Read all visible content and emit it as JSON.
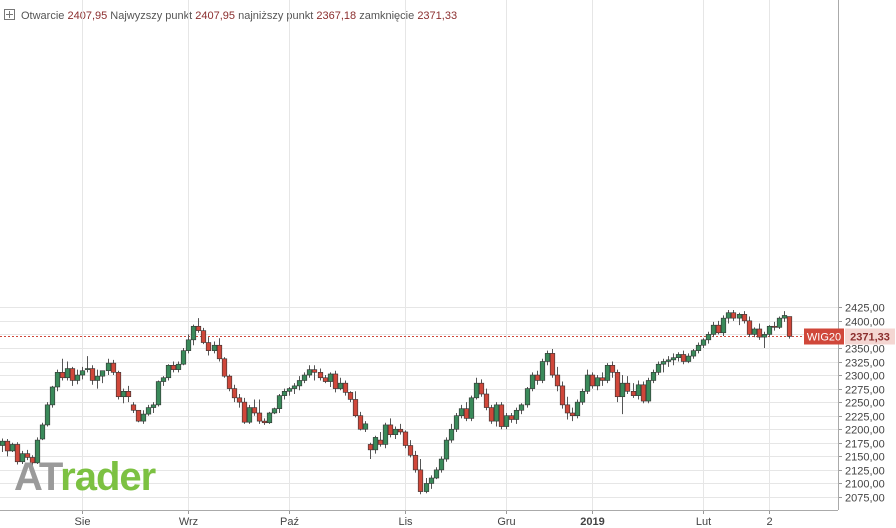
{
  "header": {
    "open_label": "Otwarcie",
    "open_value": "2407,95",
    "high_label": "Najwyzszy punkt",
    "high_value": "2407,95",
    "low_label": "najniższy punkt",
    "low_value": "2367,18",
    "close_label": "zamknięcie",
    "close_value": "2371,33"
  },
  "logo": {
    "part1": "AT",
    "part2": "rader"
  },
  "colors": {
    "up": "#3a8a5a",
    "down": "#d0473a",
    "grid": "#e6e6e6",
    "tag": "#d0473a",
    "tag_value_bg": "#f4d6d2"
  },
  "chart_data": {
    "type": "candlestick",
    "instrument": "WIG20",
    "last_value": 2371.33,
    "last_label": "2371,33",
    "ylim": [
      2065,
      2432
    ],
    "y_ticks": [
      2075,
      2100,
      2125,
      2150,
      2175,
      2200,
      2225,
      2250,
      2275,
      2300,
      2325,
      2350,
      2375,
      2400,
      2425
    ],
    "y_tick_labels": [
      "2075,00",
      "2100,00",
      "2125,00",
      "2150,00",
      "2175,00",
      "2200,00",
      "2225,00",
      "2250,00",
      "2275,00",
      "2300,00",
      "2325,00",
      "2350,00",
      "2375,00",
      "2400,00",
      "2425,00"
    ],
    "x_ticks": [
      {
        "label": "Sie",
        "index": 16,
        "bold": false
      },
      {
        "label": "Wrz",
        "index": 37,
        "bold": false
      },
      {
        "label": "Paź",
        "index": 57,
        "bold": false
      },
      {
        "label": "Lis",
        "index": 80,
        "bold": false
      },
      {
        "label": "Gru",
        "index": 100,
        "bold": false
      },
      {
        "label": "2019",
        "index": 117,
        "bold": true
      },
      {
        "label": "Lut",
        "index": 139,
        "bold": false
      },
      {
        "label": "2",
        "index": 152,
        "bold": false
      }
    ],
    "candles": [
      [
        2170,
        2183,
        2158,
        2178
      ],
      [
        2178,
        2182,
        2150,
        2160
      ],
      [
        2160,
        2175,
        2158,
        2172
      ],
      [
        2172,
        2176,
        2135,
        2140
      ],
      [
        2140,
        2160,
        2136,
        2155
      ],
      [
        2155,
        2162,
        2143,
        2148
      ],
      [
        2148,
        2152,
        2130,
        2138
      ],
      [
        2138,
        2185,
        2136,
        2180
      ],
      [
        2182,
        2212,
        2180,
        2208
      ],
      [
        2208,
        2250,
        2205,
        2245
      ],
      [
        2245,
        2280,
        2240,
        2278
      ],
      [
        2278,
        2310,
        2270,
        2305
      ],
      [
        2305,
        2330,
        2290,
        2295
      ],
      [
        2295,
        2325,
        2290,
        2312
      ],
      [
        2312,
        2315,
        2280,
        2290
      ],
      [
        2290,
        2310,
        2283,
        2300
      ],
      [
        2300,
        2315,
        2292,
        2308
      ],
      [
        2310,
        2335,
        2305,
        2312
      ],
      [
        2312,
        2318,
        2282,
        2290
      ],
      [
        2290,
        2310,
        2275,
        2298
      ],
      [
        2298,
        2305,
        2285,
        2308
      ],
      [
        2308,
        2330,
        2300,
        2322
      ],
      [
        2322,
        2328,
        2300,
        2305
      ],
      [
        2305,
        2308,
        2255,
        2260
      ],
      [
        2260,
        2275,
        2248,
        2270
      ],
      [
        2270,
        2280,
        2250,
        2260
      ],
      [
        2245,
        2250,
        2230,
        2235
      ],
      [
        2235,
        2235,
        2213,
        2215
      ],
      [
        2215,
        2235,
        2210,
        2228
      ],
      [
        2228,
        2245,
        2225,
        2240
      ],
      [
        2240,
        2250,
        2230,
        2245
      ],
      [
        2245,
        2290,
        2242,
        2288
      ],
      [
        2288,
        2298,
        2280,
        2295
      ],
      [
        2295,
        2320,
        2290,
        2318
      ],
      [
        2318,
        2325,
        2305,
        2310
      ],
      [
        2310,
        2325,
        2305,
        2320
      ],
      [
        2320,
        2350,
        2318,
        2345
      ],
      [
        2345,
        2375,
        2340,
        2365
      ],
      [
        2365,
        2393,
        2355,
        2390
      ],
      [
        2390,
        2405,
        2378,
        2382
      ],
      [
        2382,
        2387,
        2357,
        2360
      ],
      [
        2360,
        2370,
        2336,
        2345
      ],
      [
        2345,
        2362,
        2340,
        2355
      ],
      [
        2355,
        2368,
        2325,
        2330
      ],
      [
        2330,
        2333,
        2295,
        2298
      ],
      [
        2298,
        2301,
        2270,
        2275
      ],
      [
        2275,
        2282,
        2250,
        2258
      ],
      [
        2258,
        2265,
        2240,
        2250
      ],
      [
        2250,
        2258,
        2210,
        2213
      ],
      [
        2213,
        2245,
        2210,
        2240
      ],
      [
        2240,
        2255,
        2225,
        2230
      ],
      [
        2230,
        2255,
        2210,
        2215
      ],
      [
        2215,
        2220,
        2208,
        2212
      ],
      [
        2212,
        2232,
        2210,
        2230
      ],
      [
        2230,
        2240,
        2228,
        2238
      ],
      [
        2238,
        2265,
        2230,
        2262
      ],
      [
        2262,
        2275,
        2255,
        2270
      ],
      [
        2270,
        2278,
        2262,
        2275
      ],
      [
        2275,
        2285,
        2265,
        2280
      ],
      [
        2280,
        2298,
        2272,
        2290
      ],
      [
        2290,
        2305,
        2285,
        2300
      ],
      [
        2300,
        2318,
        2295,
        2310
      ],
      [
        2310,
        2318,
        2290,
        2305
      ],
      [
        2305,
        2312,
        2290,
        2295
      ],
      [
        2295,
        2300,
        2285,
        2288
      ],
      [
        2288,
        2305,
        2278,
        2302
      ],
      [
        2302,
        2308,
        2268,
        2275
      ],
      [
        2275,
        2295,
        2272,
        2285
      ],
      [
        2285,
        2290,
        2262,
        2268
      ],
      [
        2268,
        2270,
        2250,
        2255
      ],
      [
        2255,
        2270,
        2222,
        2225
      ],
      [
        2225,
        2232,
        2198,
        2200
      ],
      [
        2200,
        2215,
        2195,
        2210
      ],
      [
        2172,
        2175,
        2145,
        2162
      ],
      [
        2162,
        2188,
        2155,
        2185
      ],
      [
        2180,
        2195,
        2168,
        2172
      ],
      [
        2172,
        2212,
        2165,
        2208
      ],
      [
        2208,
        2220,
        2185,
        2190
      ],
      [
        2190,
        2205,
        2182,
        2200
      ],
      [
        2200,
        2210,
        2190,
        2195
      ],
      [
        2195,
        2198,
        2165,
        2170
      ],
      [
        2170,
        2180,
        2148,
        2152
      ],
      [
        2152,
        2160,
        2120,
        2125
      ],
      [
        2125,
        2145,
        2080,
        2085
      ],
      [
        2085,
        2110,
        2082,
        2100
      ],
      [
        2100,
        2115,
        2090,
        2110
      ],
      [
        2110,
        2130,
        2108,
        2125
      ],
      [
        2125,
        2150,
        2120,
        2145
      ],
      [
        2145,
        2185,
        2140,
        2180
      ],
      [
        2180,
        2210,
        2175,
        2200
      ],
      [
        2200,
        2230,
        2195,
        2225
      ],
      [
        2225,
        2245,
        2220,
        2238
      ],
      [
        2238,
        2250,
        2215,
        2220
      ],
      [
        2220,
        2262,
        2215,
        2258
      ],
      [
        2258,
        2295,
        2255,
        2285
      ],
      [
        2285,
        2292,
        2260,
        2265
      ],
      [
        2265,
        2275,
        2235,
        2240
      ],
      [
        2240,
        2245,
        2210,
        2215
      ],
      [
        2215,
        2250,
        2205,
        2245
      ],
      [
        2245,
        2250,
        2200,
        2205
      ],
      [
        2205,
        2230,
        2200,
        2225
      ],
      [
        2225,
        2230,
        2212,
        2218
      ],
      [
        2218,
        2240,
        2210,
        2235
      ],
      [
        2235,
        2248,
        2228,
        2245
      ],
      [
        2245,
        2278,
        2240,
        2275
      ],
      [
        2275,
        2305,
        2270,
        2300
      ],
      [
        2300,
        2308,
        2282,
        2290
      ],
      [
        2290,
        2330,
        2285,
        2325
      ],
      [
        2325,
        2345,
        2318,
        2340
      ],
      [
        2340,
        2348,
        2295,
        2300
      ],
      [
        2300,
        2315,
        2270,
        2280
      ],
      [
        2280,
        2288,
        2238,
        2245
      ],
      [
        2245,
        2260,
        2218,
        2230
      ],
      [
        2230,
        2240,
        2215,
        2225
      ],
      [
        2225,
        2255,
        2220,
        2250
      ],
      [
        2250,
        2275,
        2245,
        2270
      ],
      [
        2270,
        2310,
        2265,
        2300
      ],
      [
        2300,
        2305,
        2275,
        2280
      ],
      [
        2280,
        2300,
        2272,
        2295
      ],
      [
        2295,
        2305,
        2280,
        2290
      ],
      [
        2290,
        2322,
        2285,
        2318
      ],
      [
        2318,
        2325,
        2295,
        2305
      ],
      [
        2305,
        2310,
        2250,
        2260
      ],
      [
        2260,
        2300,
        2228,
        2285
      ],
      [
        2285,
        2298,
        2265,
        2270
      ],
      [
        2270,
        2285,
        2258,
        2262
      ],
      [
        2262,
        2290,
        2255,
        2282
      ],
      [
        2282,
        2288,
        2248,
        2252
      ],
      [
        2252,
        2295,
        2248,
        2290
      ],
      [
        2290,
        2310,
        2285,
        2305
      ],
      [
        2305,
        2325,
        2300,
        2320
      ],
      [
        2320,
        2330,
        2305,
        2325
      ],
      [
        2325,
        2335,
        2315,
        2328
      ],
      [
        2328,
        2340,
        2318,
        2332
      ],
      [
        2332,
        2342,
        2325,
        2338
      ],
      [
        2338,
        2345,
        2320,
        2325
      ],
      [
        2325,
        2340,
        2322,
        2335
      ],
      [
        2335,
        2348,
        2330,
        2345
      ],
      [
        2345,
        2360,
        2340,
        2355
      ],
      [
        2355,
        2368,
        2350,
        2365
      ],
      [
        2365,
        2380,
        2358,
        2375
      ],
      [
        2375,
        2398,
        2370,
        2392
      ],
      [
        2392,
        2400,
        2375,
        2378
      ],
      [
        2378,
        2410,
        2372,
        2405
      ],
      [
        2405,
        2420,
        2395,
        2415
      ],
      [
        2415,
        2420,
        2400,
        2405
      ],
      [
        2405,
        2415,
        2392,
        2412
      ],
      [
        2412,
        2418,
        2395,
        2400
      ],
      [
        2400,
        2408,
        2370,
        2375
      ],
      [
        2375,
        2388,
        2370,
        2385
      ],
      [
        2385,
        2395,
        2365,
        2370
      ],
      [
        2370,
        2380,
        2350,
        2375
      ],
      [
        2375,
        2392,
        2370,
        2390
      ],
      [
        2390,
        2398,
        2382,
        2388
      ],
      [
        2388,
        2408,
        2385,
        2405
      ],
      [
        2405,
        2418,
        2398,
        2410
      ],
      [
        2407.95,
        2407.95,
        2367.18,
        2371.33
      ]
    ]
  }
}
